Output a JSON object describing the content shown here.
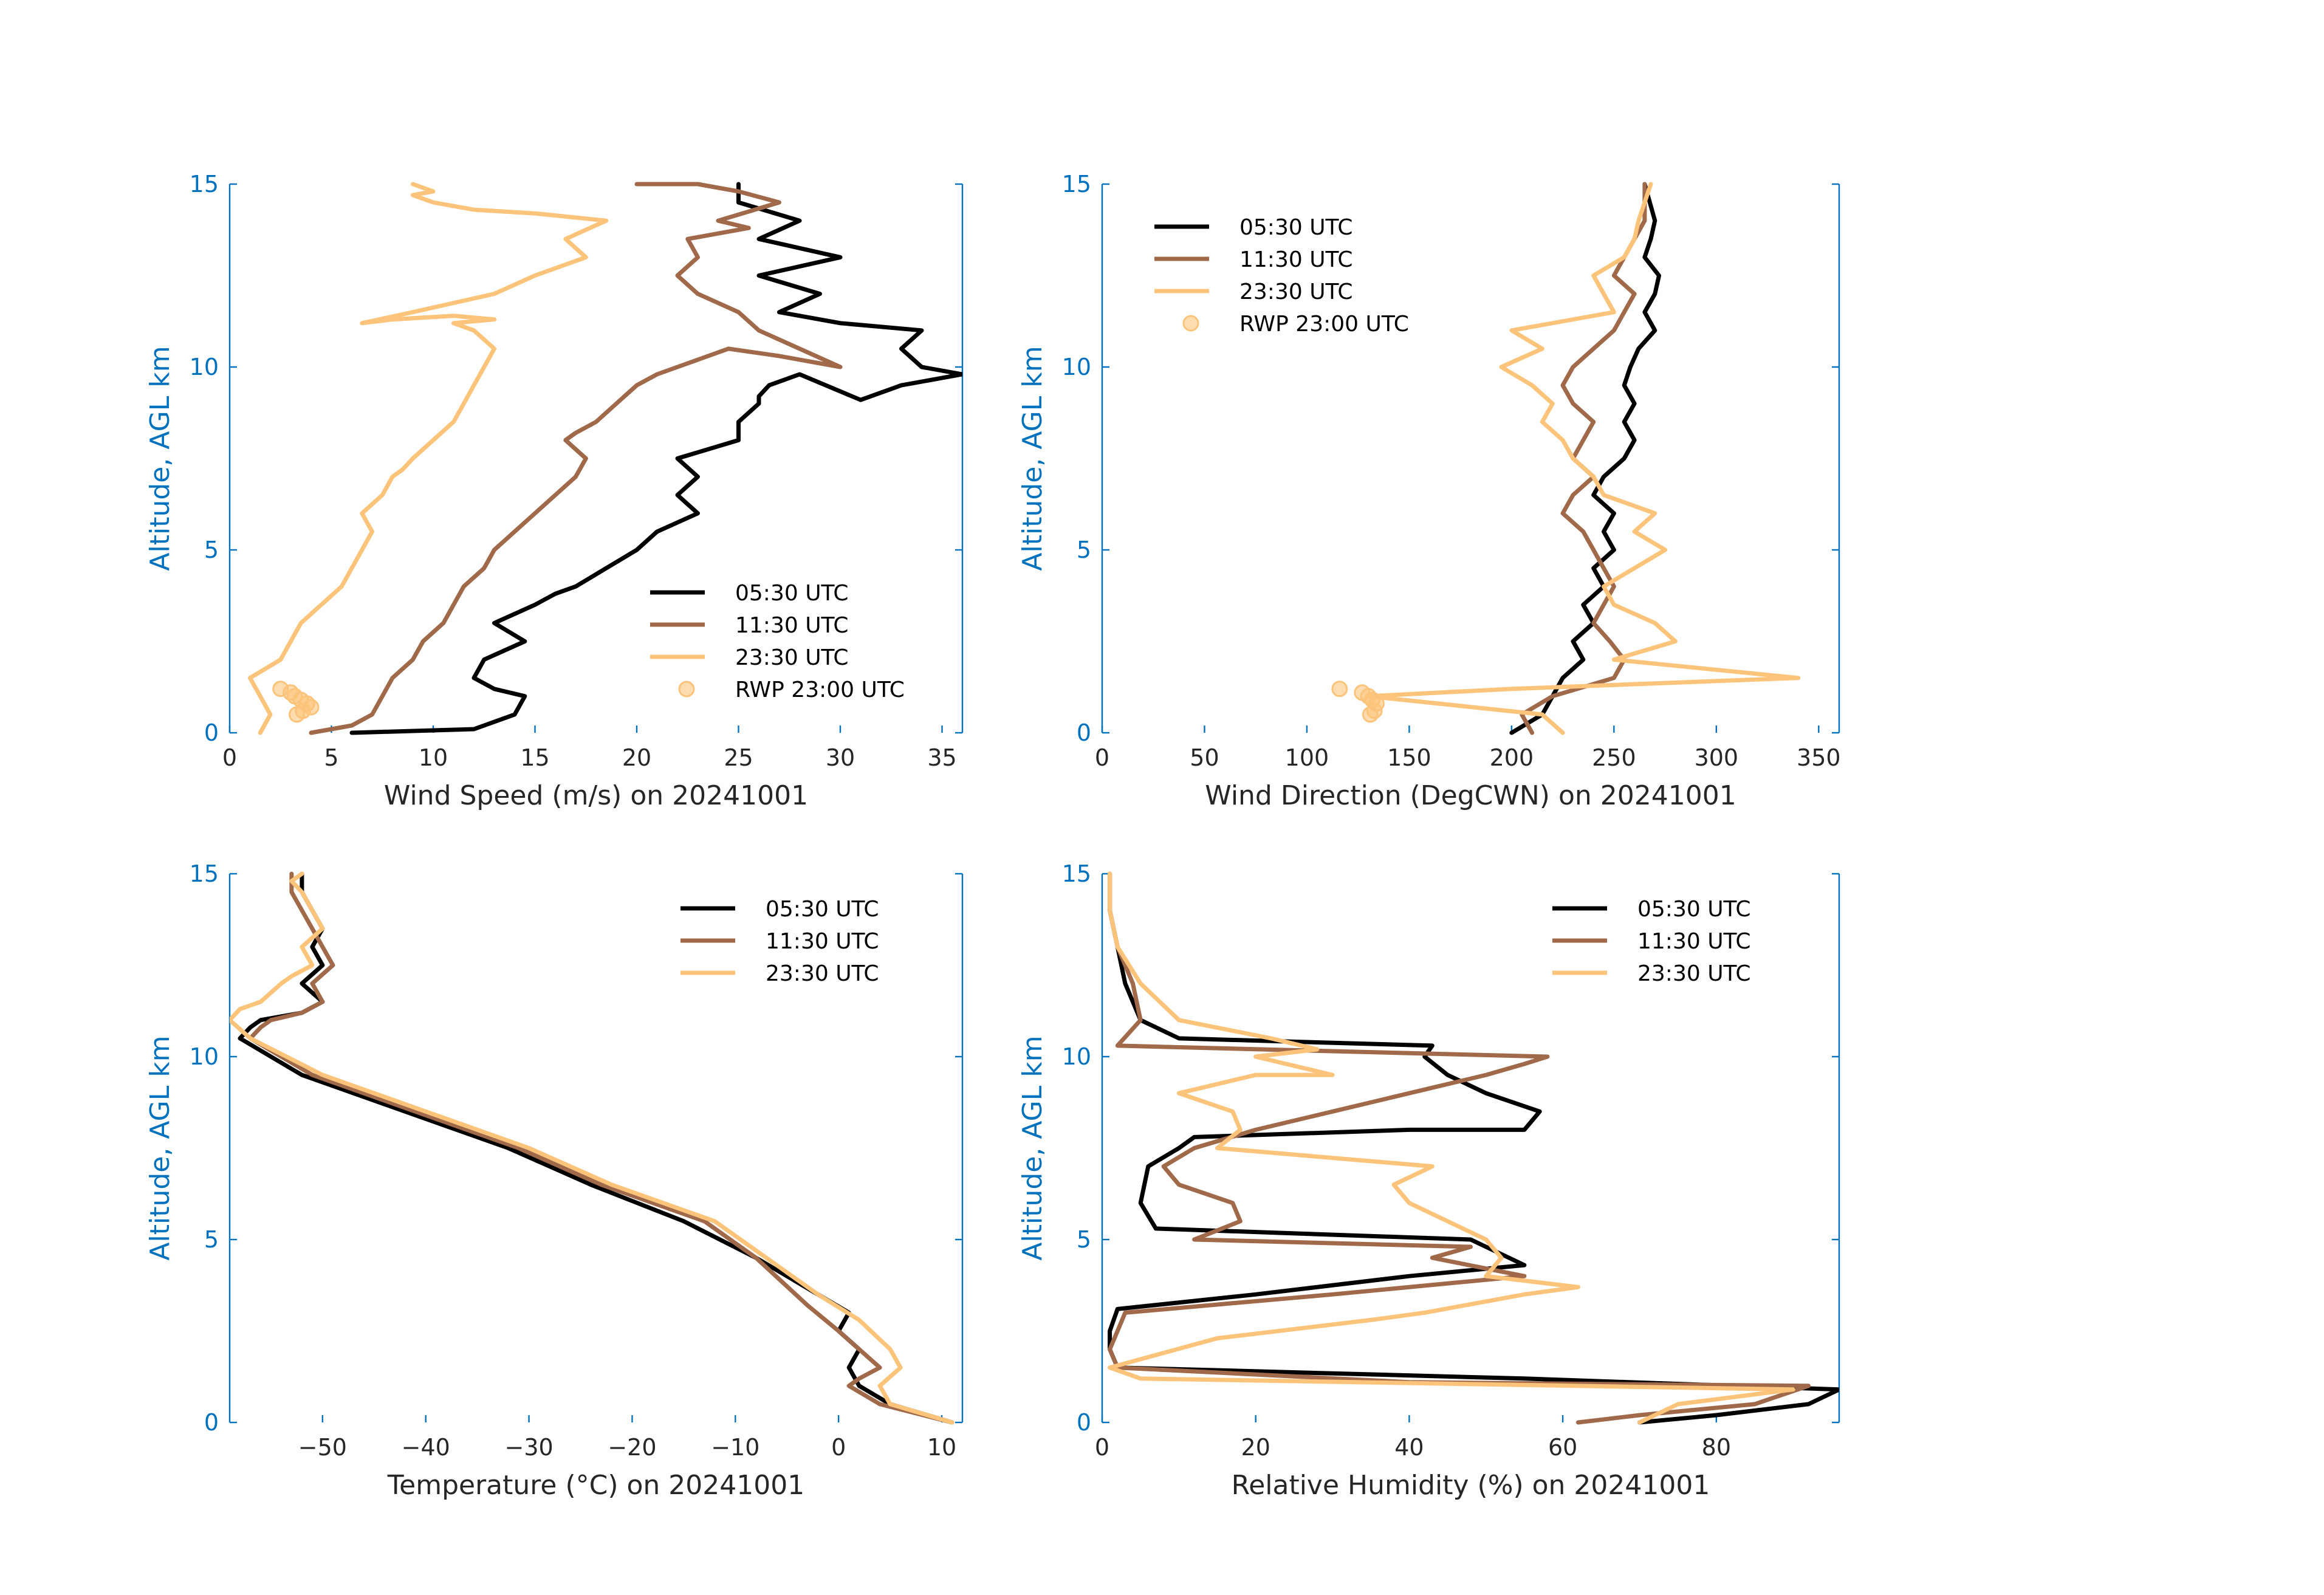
{
  "chart_data": [
    {
      "type": "line",
      "id": "wind-speed",
      "xlabel": "Wind Speed (m/s) on 20241001",
      "ylabel": "Altitude, AGL km",
      "xlim": [
        0,
        36
      ],
      "ylim": [
        0,
        15
      ],
      "xticks": [
        0,
        5,
        10,
        15,
        20,
        25,
        30,
        35
      ],
      "yticks": [
        0,
        5,
        10,
        15
      ],
      "legend": "bottom-right",
      "series": [
        {
          "name": "05:30 UTC",
          "color": "#000000",
          "x": [
            6,
            12,
            14,
            14.5,
            13,
            12,
            12.5,
            14.5,
            13,
            15,
            16,
            17,
            18.5,
            20,
            21,
            23,
            22,
            23,
            22,
            25,
            25,
            26,
            26,
            26.5,
            28,
            31,
            33,
            36,
            34,
            33,
            34,
            30,
            27,
            29,
            26,
            30,
            26,
            28,
            25,
            25
          ],
          "y": [
            0,
            0.1,
            0.5,
            1,
            1.2,
            1.5,
            2,
            2.5,
            3,
            3.5,
            3.8,
            4,
            4.5,
            5,
            5.5,
            6,
            6.5,
            7,
            7.5,
            8,
            8.5,
            9,
            9.2,
            9.5,
            9.8,
            9.1,
            9.5,
            9.8,
            10,
            10.5,
            11,
            11.2,
            11.5,
            12,
            12.5,
            13,
            13.5,
            14,
            14.5,
            15
          ]
        },
        {
          "name": "11:30 UTC",
          "color": "#A0694A",
          "x": [
            4,
            6,
            7,
            7.5,
            8,
            9,
            9.5,
            10.5,
            11,
            11.5,
            12.5,
            13,
            14,
            15,
            16,
            17,
            17.5,
            16.5,
            17,
            18,
            19,
            20,
            21,
            22,
            23,
            24.5,
            27,
            30,
            26,
            25,
            23,
            22,
            23,
            22.5,
            25.5,
            24,
            27,
            25,
            23,
            20
          ],
          "y": [
            0,
            0.2,
            0.5,
            1,
            1.5,
            2,
            2.5,
            3,
            3.5,
            4,
            4.5,
            5,
            5.5,
            6,
            6.5,
            7,
            7.5,
            8,
            8.2,
            8.5,
            9,
            9.5,
            9.8,
            10,
            10.2,
            10.5,
            10.3,
            10,
            11,
            11.5,
            12,
            12.5,
            13,
            13.5,
            13.8,
            14,
            14.5,
            14.8,
            15,
            15
          ]
        },
        {
          "name": "23:30 UTC",
          "color": "#FBC47A",
          "x": [
            1.5,
            2,
            1,
            2.5,
            3,
            3.5,
            4.5,
            5.5,
            6,
            6.5,
            7,
            6.5,
            7.5,
            8,
            8.5,
            9,
            10,
            11,
            11.5,
            12,
            12.5,
            13,
            12,
            11,
            13,
            11,
            8,
            6.5,
            9,
            13,
            15,
            17.5,
            16.5,
            18.5,
            15,
            12,
            10,
            9,
            10,
            9
          ],
          "y": [
            0,
            0.5,
            1.5,
            2,
            2.5,
            3,
            3.5,
            4,
            4.5,
            5,
            5.5,
            6,
            6.5,
            7,
            7.2,
            7.5,
            8,
            8.5,
            9,
            9.5,
            10,
            10.5,
            11,
            11.2,
            11.3,
            11.4,
            11.3,
            11.2,
            11.5,
            12,
            12.5,
            13,
            13.5,
            14,
            14.2,
            14.3,
            14.5,
            14.7,
            14.8,
            15
          ]
        }
      ],
      "points": {
        "name": "RWP 23:00 UTC",
        "color": "#FBC47A",
        "x": [
          2.5,
          3,
          3.2,
          3.5,
          3.8,
          4,
          3.6,
          3.3
        ],
        "y": [
          1.2,
          1.1,
          1,
          0.9,
          0.8,
          0.7,
          0.6,
          0.5
        ]
      }
    },
    {
      "type": "line",
      "id": "wind-direction",
      "xlabel": "Wind Direction (DegCWN) on 20241001",
      "ylabel": "Altitude, AGL km",
      "xlim": [
        0,
        360
      ],
      "ylim": [
        0,
        15
      ],
      "xticks": [
        0,
        50,
        100,
        150,
        200,
        250,
        300,
        350
      ],
      "yticks": [
        0,
        5,
        10,
        15
      ],
      "legend": "top-left",
      "series": [
        {
          "name": "05:30 UTC",
          "color": "#000000",
          "x": [
            200,
            215,
            220,
            225,
            235,
            230,
            240,
            235,
            245,
            240,
            250,
            245,
            250,
            240,
            245,
            255,
            260,
            255,
            260,
            255,
            258,
            262,
            270,
            265,
            270,
            272,
            265,
            268,
            270,
            265
          ],
          "y": [
            0,
            0.5,
            1,
            1.5,
            2,
            2.5,
            3,
            3.5,
            4,
            4.5,
            5,
            5.5,
            6,
            6.5,
            7,
            7.5,
            8,
            8.5,
            9,
            9.5,
            10,
            10.5,
            11,
            11.5,
            12,
            12.5,
            13,
            13.5,
            14,
            15
          ]
        },
        {
          "name": "11:30 UTC",
          "color": "#A0694A",
          "x": [
            210,
            205,
            220,
            250,
            255,
            248,
            240,
            245,
            250,
            245,
            240,
            235,
            225,
            230,
            240,
            230,
            235,
            240,
            230,
            225,
            230,
            240,
            250,
            255,
            260,
            250,
            255,
            260,
            265,
            265
          ],
          "y": [
            0,
            0.5,
            1,
            1.5,
            2,
            2.5,
            3,
            3.5,
            4,
            4.5,
            5,
            5.5,
            6,
            6.5,
            7,
            7.5,
            8,
            8.5,
            9,
            9.5,
            10,
            10.5,
            11,
            11.5,
            12,
            12.5,
            13,
            13.5,
            14,
            15
          ]
        },
        {
          "name": "23:30 UTC",
          "color": "#FBC47A",
          "x": [
            225,
            215,
            130,
            200,
            340,
            250,
            280,
            270,
            250,
            245,
            275,
            260,
            270,
            245,
            240,
            230,
            225,
            215,
            220,
            210,
            195,
            215,
            200,
            250,
            245,
            240,
            255,
            260,
            262,
            268
          ],
          "y": [
            0,
            0.5,
            1,
            1.2,
            1.5,
            2,
            2.5,
            3,
            3.5,
            4,
            5,
            5.5,
            6,
            6.5,
            7,
            7.5,
            8,
            8.5,
            9,
            9.5,
            10,
            10.5,
            11,
            11.5,
            12,
            12.5,
            13,
            13.5,
            14,
            15
          ]
        }
      ],
      "points": {
        "name": "RWP 23:00 UTC",
        "color": "#FBC47A",
        "x": [
          116,
          127,
          130,
          132,
          134,
          133,
          131
        ],
        "y": [
          1.2,
          1.1,
          1,
          0.9,
          0.8,
          0.6,
          0.5
        ]
      }
    },
    {
      "type": "line",
      "id": "temperature",
      "xlabel": "Temperature (°C) on 20241001",
      "ylabel": "Altitude, AGL km",
      "xlim": [
        -59,
        12
      ],
      "ylim": [
        0,
        15
      ],
      "xticks": [
        -50,
        -40,
        -30,
        -20,
        -10,
        0,
        10
      ],
      "yticks": [
        0,
        5,
        10,
        15
      ],
      "legend": "top-right",
      "series": [
        {
          "name": "05:30 UTC",
          "color": "#000000",
          "x": [
            11,
            5,
            2,
            1,
            2,
            0,
            1,
            -2,
            -8,
            -15,
            -24,
            -32,
            -42,
            -52,
            -58,
            -57,
            -56,
            -52,
            -50,
            -52,
            -50,
            -51,
            -50,
            -51,
            -52,
            -52
          ],
          "y": [
            0,
            0.5,
            1,
            1.5,
            2,
            2.5,
            3,
            3.5,
            4.5,
            5.5,
            6.5,
            7.5,
            8.5,
            9.5,
            10.5,
            10.8,
            11,
            11.2,
            11.5,
            12,
            12.5,
            13,
            13.5,
            14,
            14.5,
            15
          ]
        },
        {
          "name": "11:30 UTC",
          "color": "#A0694A",
          "x": [
            11,
            4,
            1,
            2,
            4,
            2,
            0,
            -3,
            -8,
            -13,
            -23,
            -31,
            -41,
            -51,
            -57,
            -56,
            -55,
            -52,
            -50,
            -51,
            -49,
            -50,
            -51,
            -52,
            -53,
            -53
          ],
          "y": [
            0,
            0.5,
            1,
            1.2,
            1.5,
            2,
            2.5,
            3.2,
            4.5,
            5.5,
            6.5,
            7.5,
            8.5,
            9.5,
            10.5,
            10.8,
            11,
            11.2,
            11.5,
            12,
            12.5,
            13,
            13.5,
            14,
            14.5,
            15
          ]
        },
        {
          "name": "23:30 UTC",
          "color": "#FBC47A",
          "x": [
            11,
            5,
            4,
            6,
            5,
            2,
            -2,
            -7,
            -12,
            -22,
            -30,
            -40,
            -50,
            -57,
            -59,
            -58,
            -56,
            -54,
            -53,
            -51,
            -52,
            -50,
            -51,
            -52,
            -53,
            -52
          ],
          "y": [
            0,
            0.5,
            1,
            1.5,
            2,
            2.8,
            3.5,
            4.5,
            5.5,
            6.5,
            7.5,
            8.5,
            9.5,
            10.5,
            11,
            11.3,
            11.5,
            12,
            12.2,
            12.5,
            13,
            13.5,
            14,
            14.5,
            14.8,
            15
          ]
        }
      ]
    },
    {
      "type": "line",
      "id": "relative-humidity",
      "xlabel": "Relative Humidity (%) on 20241001",
      "ylabel": "Altitude, AGL km",
      "xlim": [
        0,
        96
      ],
      "ylim": [
        0,
        15
      ],
      "xticks": [
        0,
        20,
        40,
        60,
        80
      ],
      "yticks": [
        0,
        5,
        10,
        15
      ],
      "legend": "top-right",
      "series": [
        {
          "name": "05:30 UTC",
          "color": "#000000",
          "x": [
            70,
            80,
            92,
            96,
            55,
            2,
            1,
            1,
            2,
            20,
            40,
            55,
            50,
            48,
            7,
            5,
            6,
            10,
            12,
            40,
            55,
            57,
            50,
            45,
            42,
            43,
            10,
            5,
            3,
            2,
            1,
            1
          ],
          "y": [
            0,
            0.2,
            0.5,
            0.9,
            1.2,
            1.5,
            2,
            2.5,
            3.1,
            3.5,
            4,
            4.3,
            4.8,
            5,
            5.3,
            6,
            7,
            7.5,
            7.8,
            8,
            8,
            8.5,
            9,
            9.5,
            10,
            10.3,
            10.5,
            11,
            12,
            13,
            14,
            15
          ]
        },
        {
          "name": "11:30 UTC",
          "color": "#A0694A",
          "x": [
            62,
            70,
            85,
            92,
            40,
            2,
            1,
            2,
            3,
            30,
            55,
            43,
            48,
            12,
            18,
            17,
            10,
            8,
            12,
            20,
            30,
            40,
            50,
            55,
            58,
            2,
            5,
            4,
            2,
            1,
            1
          ],
          "y": [
            0,
            0.2,
            0.5,
            1,
            1.1,
            1.5,
            2,
            2.5,
            3,
            3.5,
            4,
            4.5,
            4.8,
            5,
            5.5,
            6,
            6.5,
            7,
            7.5,
            8,
            8.5,
            9,
            9.5,
            9.8,
            10,
            10.3,
            11,
            12,
            13,
            14,
            15
          ]
        },
        {
          "name": "23:30 UTC",
          "color": "#FBC47A",
          "x": [
            70,
            72,
            75,
            90,
            5,
            1,
            15,
            35,
            42,
            55,
            62,
            50,
            52,
            50,
            45,
            40,
            38,
            43,
            15,
            18,
            17,
            10,
            20,
            30,
            20,
            28,
            22,
            10,
            5,
            2,
            1,
            1
          ],
          "y": [
            0,
            0.2,
            0.5,
            0.9,
            1.2,
            1.5,
            2.3,
            2.8,
            3,
            3.5,
            3.7,
            4,
            4.5,
            5,
            5.5,
            6,
            6.5,
            7,
            7.5,
            8,
            8.5,
            9,
            9.5,
            9.5,
            10,
            10.2,
            10.5,
            11,
            12,
            13,
            14,
            15
          ]
        }
      ]
    }
  ]
}
